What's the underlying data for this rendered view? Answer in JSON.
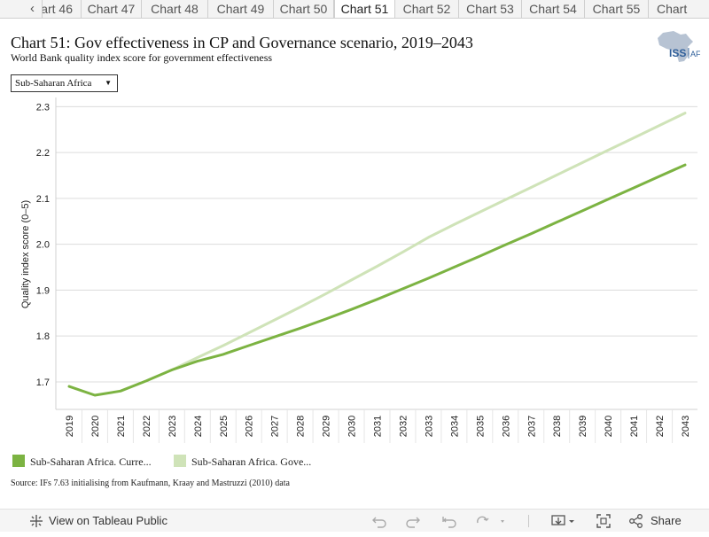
{
  "tabs": [
    {
      "label": "art 46",
      "active": false
    },
    {
      "label": "Chart 47",
      "active": false
    },
    {
      "label": "Chart 48",
      "active": false
    },
    {
      "label": "Chart 49",
      "active": false
    },
    {
      "label": "Chart 50",
      "active": false
    },
    {
      "label": "Chart 51",
      "active": true
    },
    {
      "label": "Chart 52",
      "active": false
    },
    {
      "label": "Chart 53",
      "active": false
    },
    {
      "label": "Chart 54",
      "active": false
    },
    {
      "label": "Chart 55",
      "active": false
    },
    {
      "label": "Chart",
      "active": false
    }
  ],
  "tab_prev_icon": "chevron-left-icon",
  "header": {
    "title": "Chart 51: Gov effectiveness in CP and Governance scenario, 2019–2043",
    "subtitle": "World Bank quality index score for government effectiveness",
    "logo_text": "ISS",
    "logo_suffix": "AFI"
  },
  "filter": {
    "selected": "Sub-Saharan Africa"
  },
  "chart_data": {
    "type": "line",
    "title": "Chart 51: Gov effectiveness in CP and Governance scenario, 2019–2043",
    "subtitle": "World Bank quality index score for government effectiveness",
    "xlabel": "",
    "ylabel": "Quality index score (0–5)",
    "x": [
      2019,
      2020,
      2021,
      2022,
      2023,
      2024,
      2025,
      2026,
      2027,
      2028,
      2029,
      2030,
      2031,
      2032,
      2033,
      2034,
      2035,
      2036,
      2037,
      2038,
      2039,
      2040,
      2041,
      2042,
      2043
    ],
    "ylim": [
      1.64,
      2.32
    ],
    "yticks": [
      1.7,
      1.8,
      1.9,
      2.0,
      2.1,
      2.2,
      2.3
    ],
    "ytick_labels": [
      "1.7",
      "1.8",
      "1.9",
      "2.0",
      "2.1",
      "2.2",
      "2.3"
    ],
    "grid": true,
    "legend_position": "bottom-left",
    "series": [
      {
        "name": "Sub-Saharan Africa. Curre...",
        "color": "#7cb342",
        "values": [
          1.69,
          1.671,
          1.68,
          1.702,
          1.726,
          1.745,
          1.76,
          1.779,
          1.798,
          1.817,
          1.837,
          1.858,
          1.88,
          1.903,
          1.926,
          1.95,
          1.974,
          1.999,
          2.023,
          2.048,
          2.073,
          2.098,
          2.123,
          2.148,
          2.173
        ]
      },
      {
        "name": "Sub-Saharan Africa. Gove...",
        "color": "#cfe3b8",
        "values": [
          null,
          null,
          null,
          null,
          1.726,
          1.753,
          1.779,
          1.807,
          1.835,
          1.863,
          1.892,
          1.922,
          1.952,
          1.983,
          2.015,
          2.043,
          2.07,
          2.097,
          2.124,
          2.151,
          2.178,
          2.205,
          2.232,
          2.259,
          2.286
        ]
      }
    ]
  },
  "source": "Source: IFs 7.63 initialising from Kaufmann, Kraay and Mastruzzi (2010) data",
  "footer": {
    "view_label": "View on Tableau Public",
    "share_label": "Share",
    "icons": [
      "tableau-logo-icon",
      "undo-icon",
      "redo-icon",
      "revert-icon",
      "refresh-icon",
      "download-icon",
      "fullscreen-icon",
      "share-icon"
    ]
  }
}
